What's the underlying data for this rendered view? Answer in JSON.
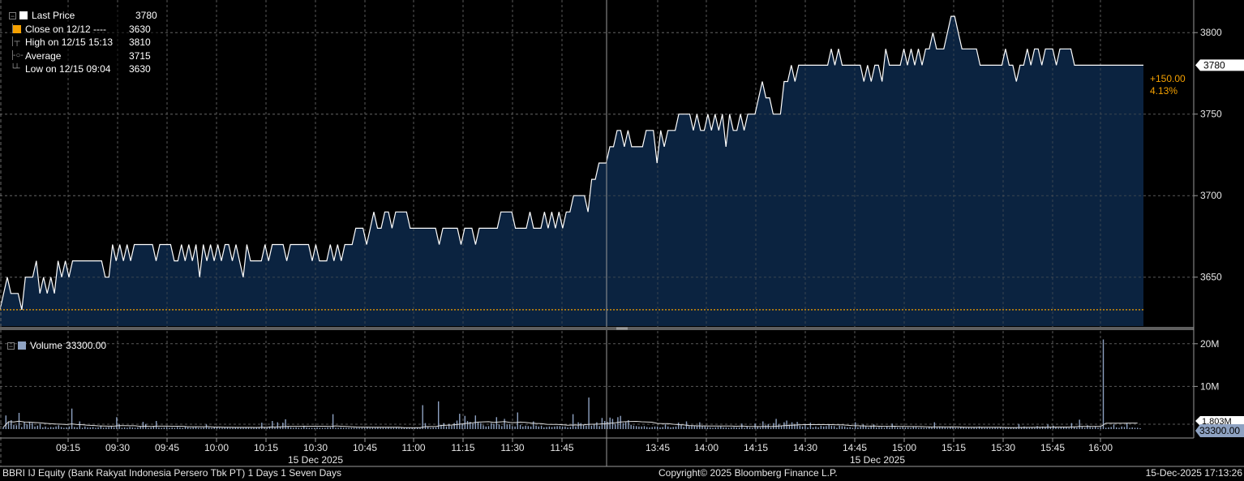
{
  "legend": {
    "rows": [
      {
        "label": "Last Price",
        "value": "3780",
        "marker": "square",
        "color": "#ffffff"
      },
      {
        "label": "Close on 12/12 ----",
        "value": "3630",
        "marker": "square",
        "color": "#f4a000"
      },
      {
        "label": "High on 12/15 15:13",
        "value": "3810",
        "marker": "high-icon",
        "color": "#9a9a9a"
      },
      {
        "label": "Average",
        "value": "3715",
        "marker": "average-icon",
        "color": "#9a9a9a"
      },
      {
        "label": "Low on 12/15 09:04",
        "value": "3630",
        "marker": "low-icon",
        "color": "#9a9a9a"
      }
    ]
  },
  "volume_legend": {
    "label": "Volume",
    "value": "33300.00",
    "color": "#8ea2c2"
  },
  "price_tag": {
    "value": "3780"
  },
  "change": {
    "abs": "+150.00",
    "pct": "4.13%",
    "color": "#f4a000"
  },
  "volume_tags": {
    "avg": "1.803M",
    "last": "33300.00"
  },
  "footer": {
    "left": "BBRI IJ Equity (Bank Rakyat Indonesia Persero Tbk PT) 1 Days 1 Seven Days",
    "center": "Copyright© 2025 Bloomberg Finance L.P.",
    "right": "15-Dec-2025 17:13:26"
  },
  "colors": {
    "area_fill": "#0b2340",
    "line": "#ffffff",
    "close_line": "#f4a000",
    "grid": "#5a5a5a",
    "volume_bar": "#8ea2c2",
    "panel_bg": "#000000"
  },
  "chart_data": {
    "type": "area",
    "title": "",
    "series": [
      {
        "name": "Last Price",
        "values": [
          3630,
          3640,
          3650,
          3640,
          3640,
          3640,
          3630,
          3650,
          3650,
          3650,
          3660,
          3640,
          3650,
          3640,
          3650,
          3640,
          3660,
          3650,
          3660,
          3650,
          3660,
          3660,
          3660,
          3660,
          3660,
          3660,
          3660,
          3660,
          3660,
          3650,
          3650,
          3670,
          3660,
          3670,
          3660,
          3670,
          3660,
          3670,
          3670,
          3670,
          3670,
          3670,
          3670,
          3660,
          3670,
          3670,
          3670,
          3670,
          3660,
          3660,
          3670,
          3660,
          3670,
          3660,
          3670,
          3650,
          3670,
          3660,
          3670,
          3660,
          3670,
          3660,
          3670,
          3670,
          3660,
          3670,
          3660,
          3650,
          3670,
          3660,
          3660,
          3660,
          3660,
          3670,
          3660,
          3670,
          3670,
          3670,
          3670,
          3660,
          3670,
          3670,
          3670,
          3670,
          3670,
          3670,
          3660,
          3670,
          3660,
          3660,
          3660,
          3670,
          3660,
          3670,
          3660,
          3670,
          3670,
          3670,
          3680,
          3680,
          3680,
          3670,
          3680,
          3690,
          3680,
          3680,
          3690,
          3690,
          3680,
          3690,
          3690,
          3690,
          3690,
          3680,
          3680,
          3680,
          3680,
          3680,
          3680,
          3680,
          3680,
          3670,
          3680,
          3680,
          3680,
          3680,
          3680,
          3670,
          3680,
          3680,
          3680,
          3670,
          3680,
          3680,
          3680,
          3680,
          3680,
          3680,
          3690,
          3690,
          3690,
          3690,
          3680,
          3680,
          3680,
          3680,
          3690,
          3680,
          3680,
          3680,
          3690,
          3680,
          3690,
          3680,
          3690,
          3680,
          3690,
          3690,
          3700,
          3700,
          3700,
          3700,
          3690,
          3710,
          3710,
          3720,
          3720,
          3720,
          3730,
          3730,
          3740,
          3740,
          3730,
          3740,
          3730,
          3730,
          3730,
          3730,
          3740,
          3740,
          3740,
          3720,
          3740,
          3730,
          3740,
          3740,
          3740,
          3750,
          3750,
          3750,
          3750,
          3740,
          3750,
          3740,
          3740,
          3750,
          3740,
          3750,
          3740,
          3750,
          3730,
          3750,
          3740,
          3740,
          3750,
          3740,
          3750,
          3750,
          3750,
          3760,
          3770,
          3760,
          3760,
          3750,
          3750,
          3750,
          3770,
          3770,
          3780,
          3770,
          3780,
          3780,
          3780,
          3780,
          3780,
          3780,
          3780,
          3780,
          3780,
          3790,
          3780,
          3790,
          3780,
          3780,
          3780,
          3780,
          3780,
          3780,
          3770,
          3780,
          3770,
          3780,
          3780,
          3770,
          3790,
          3780,
          3780,
          3780,
          3780,
          3790,
          3780,
          3790,
          3780,
          3790,
          3780,
          3790,
          3790,
          3800,
          3790,
          3790,
          3790,
          3800,
          3810,
          3810,
          3800,
          3790,
          3790,
          3790,
          3790,
          3790,
          3780,
          3780,
          3780,
          3780,
          3780,
          3780,
          3780,
          3790,
          3780,
          3780,
          3770,
          3780,
          3780,
          3790,
          3780,
          3790,
          3790,
          3780,
          3790,
          3790,
          3790,
          3780,
          3790,
          3790,
          3790,
          3790,
          3780,
          3780,
          3780,
          3780,
          3780,
          3780,
          3780,
          3780,
          3780,
          3780,
          3780,
          3780,
          3780,
          3780,
          3780,
          3780,
          3780,
          3780,
          3780,
          3780
        ]
      }
    ],
    "close_value": 3630,
    "ylim": [
      3620,
      3820
    ],
    "y_ticks": [
      3650,
      3700,
      3750,
      3800
    ],
    "x_ticks": [
      "09:15",
      "09:30",
      "09:45",
      "10:00",
      "10:15",
      "10:30",
      "10:45",
      "11:00",
      "11:15",
      "11:30",
      "11:45",
      "13:45",
      "14:00",
      "14:15",
      "14:30",
      "14:45",
      "15:00",
      "15:15",
      "15:30",
      "15:45",
      "16:00"
    ],
    "x_date_labels": [
      "15 Dec 2025",
      "15 Dec 2025"
    ],
    "volume": {
      "ylim": [
        0,
        23000000
      ],
      "y_ticks_labels": [
        "20M",
        "10M"
      ],
      "y_ticks": [
        20000000,
        10000000
      ],
      "values": [
        0.4,
        3.2,
        1.6,
        2.1,
        1.0,
        0.9,
        3.8,
        0.5,
        1.6,
        1.1,
        1.7,
        1.4,
        0.6,
        0.8,
        1.2,
        0.4,
        0.6,
        0.3,
        0.5,
        0.4,
        0.6,
        0.9,
        0.5,
        0.3,
        0.4,
        0.6,
        4.8,
        0.5,
        0.4,
        1.8,
        0.3,
        0.6,
        0.4,
        0.4,
        0.5,
        0.3,
        0.4,
        0.8,
        0.3,
        0.4,
        0.5,
        0.6,
        0.4,
        2.8,
        1.2,
        0.3,
        0.4,
        0.3,
        0.5,
        0.4,
        0.3,
        0.4,
        0.6,
        1.7,
        1.2,
        0.3,
        0.4,
        0.6,
        1.9,
        0.4,
        0.3,
        0.4,
        0.5,
        0.3,
        0.4,
        0.3,
        0.5,
        0.4,
        0.3,
        0.6,
        0.4,
        0.3,
        0.4,
        0.5,
        0.3,
        0.3,
        0.4,
        1.1,
        0.4,
        0.3,
        0.5,
        0.4,
        0.3,
        0.3,
        0.4,
        0.4,
        0.3,
        0.3,
        0.4,
        0.4,
        0.3,
        0.3,
        0.4,
        0.4,
        0.3,
        0.3,
        0.4,
        0.4,
        1.5,
        0.4,
        0.3,
        0.6,
        1.9,
        0.4,
        1.6,
        0.5,
        1.5,
        2.3,
        0.6,
        0.4,
        0.3,
        0.4,
        0.3,
        0.3,
        0.8,
        0.4,
        0.3,
        0.3,
        0.3,
        0.4,
        0.3,
        0.3,
        0.3,
        0.4,
        0.4,
        3.5,
        0.3,
        0.3,
        0.4,
        0.3,
        0.3,
        0.3,
        0.3,
        0.3,
        0.3,
        0.3,
        0.3,
        0.3,
        0.4,
        0.3,
        0.3,
        0.3,
        0.4,
        0.3,
        0.3,
        0.3,
        0.4,
        0.3,
        0.3,
        0.4,
        0.3,
        0.3,
        0.4,
        0.3,
        0.3,
        0.3,
        0.4,
        0.4,
        0.3,
        5.6,
        1.4,
        0.6,
        0.3,
        0.4,
        0.4,
        6.5,
        1.0,
        1.4,
        0.6,
        1.2,
        0.8,
        1.4,
        2.0,
        3.6,
        1.2,
        3.1,
        1.9,
        1.7,
        1.3,
        3.2,
        1.6,
        1.4,
        0.9,
        0.6,
        0.7,
        1.4,
        1.2,
        2.8,
        1.1,
        0.7,
        2.4,
        1.0,
        1.2,
        0.7,
        0.6,
        3.9,
        1.0,
        0.6,
        0.8,
        0.7,
        0.6,
        1.8,
        0.8,
        0.6,
        0.8,
        0.4,
        0.5,
        0.6,
        0.5,
        0.6,
        0.7,
        0.7,
        0.6,
        0.6,
        0.4,
        0.5,
        3.5,
        0.6,
        1.6,
        1.4,
        1.0,
        0.8,
        7.4,
        0.8,
        1.2,
        1.6,
        0.7,
        2.6,
        1.9,
        1.7,
        2.7,
        2.4,
        1.2,
        2.8,
        3.1,
        1.4,
        1.6,
        2.1,
        1.0,
        0.8,
        0.7,
        0.6,
        0.6,
        0.7,
        0.5,
        0.4,
        0.5,
        0.6,
        0.6,
        0.4,
        0.5,
        1.1,
        0.6,
        0.4,
        0.5,
        0.6,
        1.5,
        1.0,
        0.5,
        1.8,
        0.7,
        0.9,
        0.7,
        0.7,
        1.6,
        0.7,
        0.6,
        0.5,
        0.4,
        0.3,
        0.4,
        0.5,
        0.6,
        0.4,
        0.4,
        0.3,
        0.4,
        0.5,
        0.4,
        0.4,
        1.3,
        0.3,
        0.6,
        0.4,
        0.3,
        1.3,
        0.5,
        0.4,
        1.8,
        0.9,
        1.2,
        0.4,
        1.4,
        2.4,
        1.2,
        0.8,
        1.6,
        2.0,
        0.9,
        1.6,
        1.1,
        1.7,
        0.8,
        0.6,
        1.2,
        0.4,
        1.5,
        0.4,
        0.6,
        0.4,
        0.8,
        0.6,
        0.7,
        1.0,
        0.8,
        0.7,
        0.3,
        0.8,
        0.7,
        0.6,
        0.4,
        0.5,
        0.3,
        1.6,
        0.4,
        0.6,
        1.1,
        0.6,
        0.4,
        0.8,
        1.1,
        0.4,
        0.5,
        0.5,
        0.3,
        0.6,
        0.4,
        1.3,
        0.5,
        0.4,
        0.4,
        0.5,
        0.4,
        0.4,
        0.3,
        0.5,
        0.5,
        0.3,
        0.4,
        0.3,
        0.3,
        0.5,
        0.4,
        1.6,
        0.4,
        0.6,
        0.5,
        0.4,
        0.3,
        0.5,
        0.4,
        0.3,
        0.3,
        0.4,
        0.4,
        0.3,
        0.4,
        0.3,
        0.4,
        0.3,
        0.6,
        0.4,
        0.3,
        0.3,
        0.3,
        0.3,
        0.4,
        0.3,
        0.4,
        0.3,
        0.3,
        0.3,
        0.3,
        0.3,
        0.4,
        1.2,
        0.5,
        0.6,
        0.4,
        0.3,
        0.5,
        0.3,
        0.7,
        0.4,
        0.6,
        0.5,
        1.1,
        0.4,
        0.8,
        0.5,
        0.3,
        0.4,
        0.5,
        0.4,
        0.3,
        1.4,
        0.5,
        0.4,
        2.2,
        0.6,
        0.3,
        0.9,
        0.5,
        0.4,
        0.6,
        0.3,
        0.5,
        21.0,
        0.3,
        0.4,
        0.5,
        1.1,
        0.4,
        0.3,
        0.6,
        0.5,
        1.4,
        0.3,
        0.4,
        0.3,
        0.3,
        0.2
      ],
      "unit": "M"
    }
  }
}
